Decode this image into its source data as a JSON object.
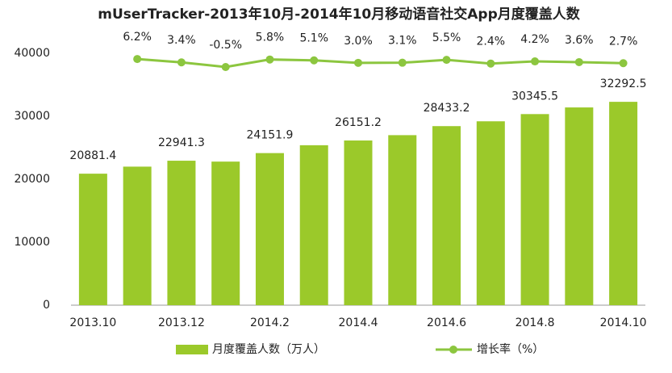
{
  "chart_data": {
    "type": "bar_line",
    "title": "mUserTracker-2013年10月-2014年10月移动语音社交App月度覆盖人数",
    "categories": [
      "2013.10",
      null,
      "2013.12",
      null,
      "2014.2",
      null,
      "2014.4",
      null,
      "2014.6",
      null,
      "2014.8",
      null,
      "2014.10"
    ],
    "series": [
      {
        "name": "月度覆盖人数（万人）",
        "color": "#9bc92a",
        "type": "bar",
        "values": [
          20881.4,
          22000,
          22941.3,
          22800,
          24151.9,
          25400,
          26151.2,
          27000,
          28433.2,
          29200,
          30345.5,
          31400,
          32292.5
        ]
      },
      {
        "name": "增长率（%）",
        "color": "#8cc63f",
        "type": "line",
        "axis": "y2",
        "values": [
          null,
          6.2,
          3.4,
          -0.5,
          5.8,
          5.1,
          3.0,
          3.1,
          5.5,
          2.4,
          4.2,
          3.6,
          2.7
        ],
        "value_labels": [
          null,
          "6.2%",
          "3.4%",
          "-0.5%",
          "5.8%",
          "5.1%",
          "3.0%",
          "3.1%",
          "5.5%",
          "2.4%",
          "4.2%",
          "3.6%",
          "2.7%"
        ]
      }
    ],
    "ylim": [
      0,
      40000
    ],
    "yticks": [
      0,
      10000,
      20000,
      30000,
      40000
    ],
    "y2lim": [
      -200,
      11
    ],
    "grid": false
  }
}
